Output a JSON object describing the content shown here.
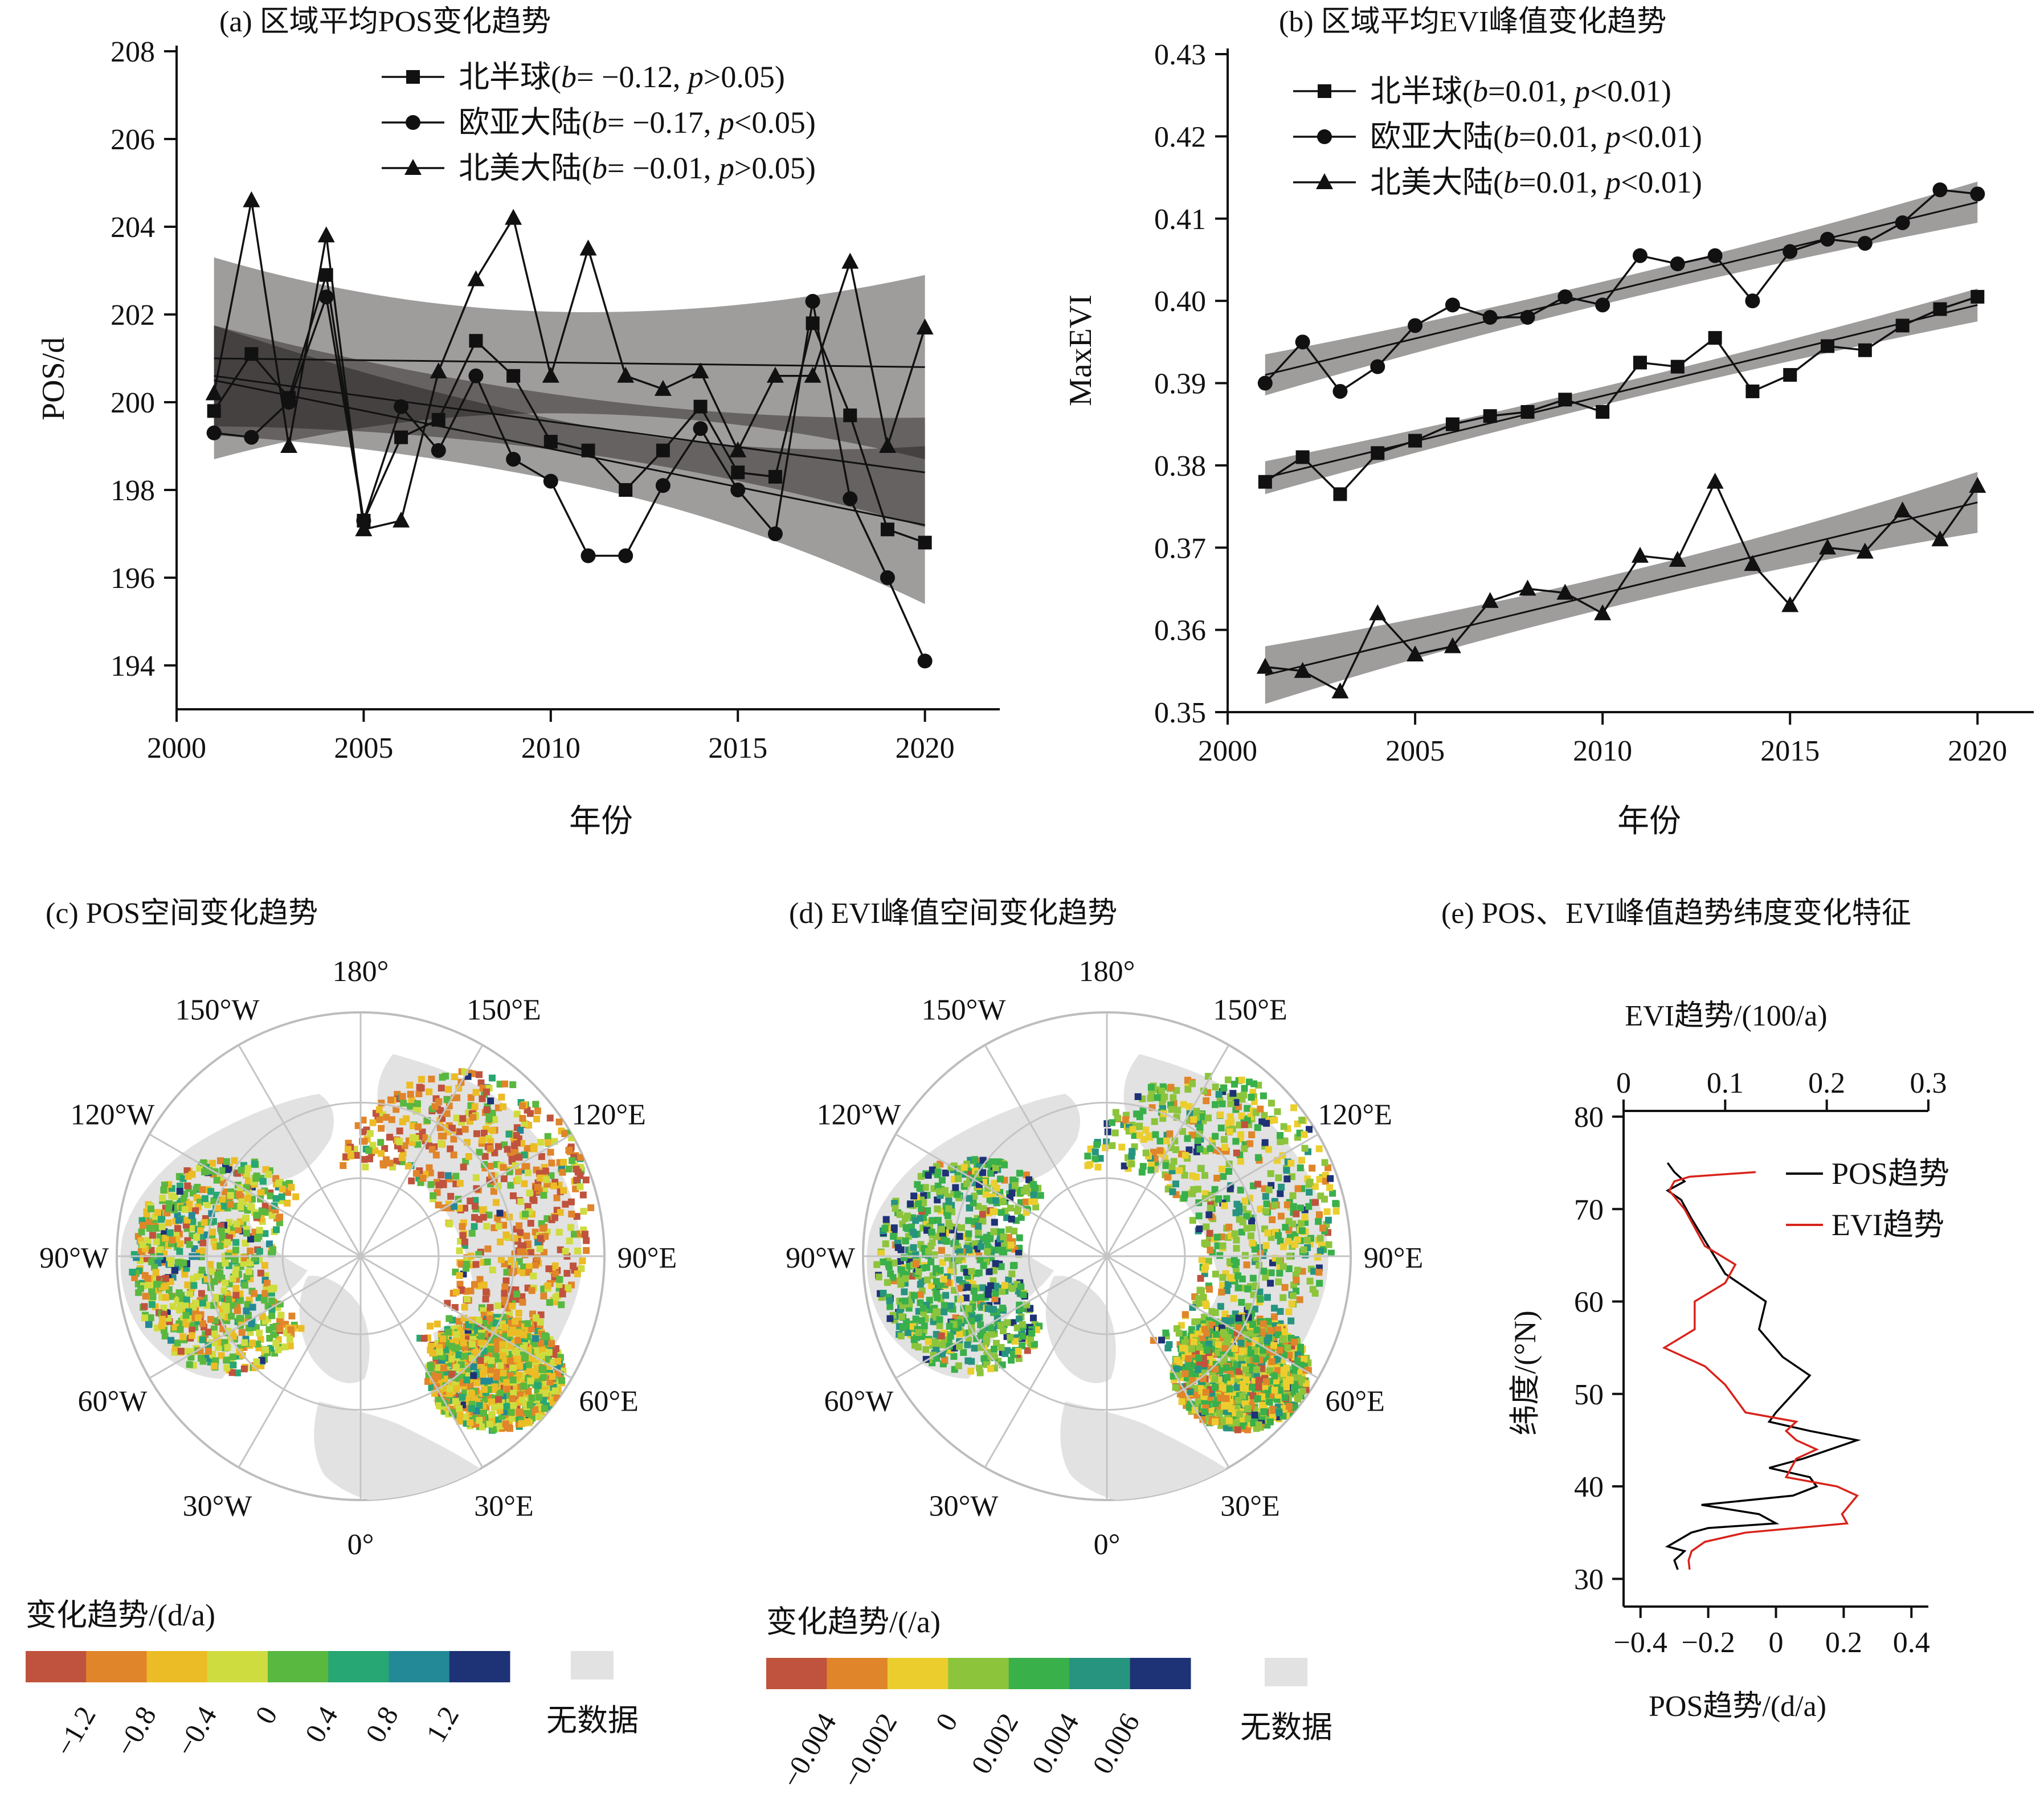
{
  "chart_data": [
    {
      "id": "a",
      "type": "line",
      "title": "(a) 区域平均POS变化趋势",
      "xlabel": "年份",
      "ylabel": "POS/d",
      "xlim": [
        2000,
        2022
      ],
      "ylim": [
        193,
        208
      ],
      "xticks": [
        2000,
        2005,
        2010,
        2015,
        2020
      ],
      "yticks": [
        194,
        196,
        198,
        200,
        202,
        204,
        206,
        208
      ],
      "legend_position": "top-right",
      "x": [
        2001,
        2002,
        2003,
        2004,
        2005,
        2006,
        2007,
        2008,
        2009,
        2010,
        2011,
        2012,
        2013,
        2014,
        2015,
        2016,
        2017,
        2018,
        2019,
        2020
      ],
      "series": [
        {
          "name": "北半球",
          "b": "−0.12",
          "p": ">0.05",
          "marker": "square",
          "values": [
            199.8,
            201.1,
            200.1,
            202.9,
            197.3,
            199.2,
            199.6,
            201.4,
            200.6,
            199.1,
            198.9,
            198.0,
            198.9,
            199.9,
            198.4,
            198.3,
            201.8,
            199.7,
            197.1,
            196.8
          ],
          "fit": [
            200.6,
            198.4
          ],
          "band_start": [
            199.5,
            201.8
          ],
          "band_end": [
            197.2,
            199.7
          ]
        },
        {
          "name": "欧亚大陆",
          "b": "−0.17",
          "p": "<0.05",
          "marker": "circle",
          "values": [
            199.3,
            199.2,
            200.0,
            202.4,
            197.3,
            199.9,
            198.9,
            200.6,
            198.7,
            198.2,
            196.5,
            196.5,
            198.1,
            199.4,
            198.0,
            197.0,
            202.3,
            197.8,
            196.0,
            194.1
          ],
          "fit": [
            200.5,
            197.2
          ],
          "band_start": [
            199.0,
            201.5
          ],
          "band_end": [
            195.4,
            199.0
          ]
        },
        {
          "name": "北美大陆",
          "b": "−0.01",
          "p": ">0.05",
          "marker": "triangle",
          "values": [
            200.2,
            204.6,
            199.0,
            203.8,
            197.1,
            197.3,
            200.7,
            202.8,
            204.2,
            200.6,
            203.5,
            200.6,
            200.3,
            200.7,
            198.9,
            200.6,
            200.6,
            203.2,
            199.0,
            201.7
          ],
          "fit": [
            201.0,
            200.8
          ],
          "band_start": [
            198.5,
            203.1
          ],
          "band_end": [
            198.7,
            202.9
          ]
        }
      ]
    },
    {
      "id": "b",
      "type": "line",
      "title": "(b) 区域平均EVI峰值变化趋势",
      "xlabel": "年份",
      "ylabel": "MaxEVI",
      "xlim": [
        2000,
        2021.5
      ],
      "ylim": [
        0.35,
        0.43
      ],
      "xticks": [
        2000,
        2005,
        2010,
        2015,
        2020
      ],
      "yticks": [
        0.35,
        0.36,
        0.37,
        0.38,
        0.39,
        0.4,
        0.41,
        0.42,
        0.43
      ],
      "legend_position": "top-left",
      "x": [
        2001,
        2002,
        2003,
        2004,
        2005,
        2006,
        2007,
        2008,
        2009,
        2010,
        2011,
        2012,
        2013,
        2014,
        2015,
        2016,
        2017,
        2018,
        2019,
        2020
      ],
      "series": [
        {
          "name": "北半球",
          "b": "0.01",
          "p": "<0.01",
          "marker": "square",
          "values": [
            0.378,
            0.381,
            0.3765,
            0.3815,
            0.383,
            0.385,
            0.386,
            0.3865,
            0.388,
            0.3865,
            0.3925,
            0.392,
            0.3955,
            0.389,
            0.391,
            0.3945,
            0.394,
            0.397,
            0.399,
            0.4005
          ],
          "fit": [
            0.3785,
            0.3995
          ],
          "band_start": [
            0.3765,
            0.3805
          ],
          "band_end": [
            0.3975,
            0.4015
          ]
        },
        {
          "name": "欧亚大陆",
          "b": "0.01",
          "p": "<0.01",
          "marker": "circle",
          "values": [
            0.39,
            0.395,
            0.389,
            0.392,
            0.397,
            0.3995,
            0.398,
            0.398,
            0.4005,
            0.3995,
            0.4055,
            0.4045,
            0.4055,
            0.4,
            0.406,
            0.4075,
            0.407,
            0.4095,
            0.4135,
            0.413
          ],
          "fit": [
            0.391,
            0.412
          ],
          "band_start": [
            0.3885,
            0.3935
          ],
          "band_end": [
            0.4095,
            0.4145
          ]
        },
        {
          "name": "北美大陆",
          "b": "0.01",
          "p": "<0.01",
          "marker": "triangle",
          "values": [
            0.3555,
            0.355,
            0.3525,
            0.362,
            0.357,
            0.358,
            0.3635,
            0.365,
            0.3645,
            0.362,
            0.369,
            0.3685,
            0.378,
            0.368,
            0.363,
            0.37,
            0.3695,
            0.3745,
            0.371,
            0.3775
          ],
          "fit": [
            0.3545,
            0.3755
          ],
          "band_start": [
            0.351,
            0.358
          ],
          "band_end": [
            0.3718,
            0.3792
          ]
        }
      ]
    },
    {
      "id": "c",
      "type": "heatmap",
      "title": "(c) POS空间变化趋势",
      "longitude_labels": [
        "180°",
        "150°E",
        "120°E",
        "90°E",
        "60°E",
        "30°E",
        "0°",
        "30°W",
        "60°W",
        "90°W",
        "120°W",
        "150°W"
      ],
      "colorbar": {
        "title": "变化趋势/(d/a)",
        "colors": [
          "#c0533d",
          "#e0852a",
          "#ebbc25",
          "#cfdc3f",
          "#59b840",
          "#27a773",
          "#248996",
          "#1e3276"
        ],
        "tick_labels": [
          "−1.2",
          "−0.8",
          "−0.4",
          "0",
          "0.4",
          "0.8",
          "1.2"
        ],
        "nodata_color": "#e2e2e2",
        "nodata_label": "无数据"
      }
    },
    {
      "id": "d",
      "type": "heatmap",
      "title": "(d) EVI峰值空间变化趋势",
      "longitude_labels": [
        "180°",
        "150°E",
        "120°E",
        "90°E",
        "60°E",
        "30°E",
        "0°",
        "30°W",
        "60°W",
        "90°W",
        "120°W",
        "150°W"
      ],
      "colorbar": {
        "title": "变化趋势/(/a)",
        "colors": [
          "#c0533d",
          "#e0852a",
          "#ebce2e",
          "#8cc43c",
          "#39b04a",
          "#27947f",
          "#1e3276"
        ],
        "tick_labels": [
          "−0.004",
          "−0.002",
          "0",
          "0.002",
          "0.004",
          "0.006"
        ],
        "nodata_color": "#e2e2e2",
        "nodata_label": "无数据"
      }
    },
    {
      "id": "e",
      "type": "line",
      "title": "(e) POS、EVI峰值趋势纬度变化特征",
      "top_xlabel": "EVI趋势/(100/a)",
      "bottom_xlabel": "POS趋势/(d/a)",
      "ylabel": "纬度/(°N)",
      "top_xlim": [
        0,
        0.3
      ],
      "top_xticks": [
        "0",
        "0.1",
        "0.2",
        "0.3"
      ],
      "bottom_xlim": [
        -0.45,
        0.45
      ],
      "bottom_xticks": [
        "−0.4",
        "−0.2",
        "0",
        "0.2",
        "0.4"
      ],
      "ylim": [
        27,
        80
      ],
      "yticks": [
        30,
        40,
        50,
        60,
        70,
        80
      ],
      "legend_position": "top-right",
      "series": [
        {
          "name": "POS趋势",
          "color": "#000000",
          "axis": "bottom",
          "points": [
            [
              -0.29,
              31
            ],
            [
              -0.3,
              32
            ],
            [
              -0.27,
              33
            ],
            [
              -0.32,
              33.5
            ],
            [
              -0.25,
              35
            ],
            [
              -0.2,
              35.5
            ],
            [
              0.0,
              36
            ],
            [
              -0.05,
              37
            ],
            [
              -0.22,
              38
            ],
            [
              0.05,
              39
            ],
            [
              0.12,
              40
            ],
            [
              0.1,
              41
            ],
            [
              -0.02,
              42
            ],
            [
              0.08,
              43
            ],
            [
              0.24,
              45
            ],
            [
              0.1,
              46
            ],
            [
              -0.02,
              47
            ],
            [
              0.0,
              48
            ],
            [
              0.05,
              50
            ],
            [
              0.1,
              52
            ],
            [
              0.02,
              54
            ],
            [
              -0.05,
              57
            ],
            [
              -0.03,
              60
            ],
            [
              -0.15,
              63
            ],
            [
              -0.2,
              66
            ],
            [
              -0.25,
              69
            ],
            [
              -0.28,
              71
            ],
            [
              -0.32,
              72
            ],
            [
              -0.27,
              73
            ],
            [
              -0.3,
              74
            ],
            [
              -0.32,
              75
            ]
          ]
        },
        {
          "name": "EVI趋势",
          "color": "#d8231a",
          "axis": "top",
          "points": [
            [
              0.065,
              31
            ],
            [
              0.064,
              32
            ],
            [
              0.067,
              33
            ],
            [
              0.08,
              34
            ],
            [
              0.12,
              35
            ],
            [
              0.22,
              36
            ],
            [
              0.215,
              37
            ],
            [
              0.23,
              39
            ],
            [
              0.21,
              40
            ],
            [
              0.16,
              41
            ],
            [
              0.17,
              43
            ],
            [
              0.19,
              44
            ],
            [
              0.17,
              45
            ],
            [
              0.16,
              46
            ],
            [
              0.17,
              47
            ],
            [
              0.12,
              48
            ],
            [
              0.1,
              51
            ],
            [
              0.08,
              53
            ],
            [
              0.04,
              55
            ],
            [
              0.07,
              57
            ],
            [
              0.07,
              60
            ],
            [
              0.1,
              62
            ],
            [
              0.11,
              64
            ],
            [
              0.08,
              66
            ],
            [
              0.07,
              68
            ],
            [
              0.06,
              70
            ],
            [
              0.045,
              72
            ],
            [
              0.05,
              73
            ],
            [
              0.065,
              73.5
            ],
            [
              0.13,
              74
            ]
          ]
        }
      ]
    }
  ]
}
